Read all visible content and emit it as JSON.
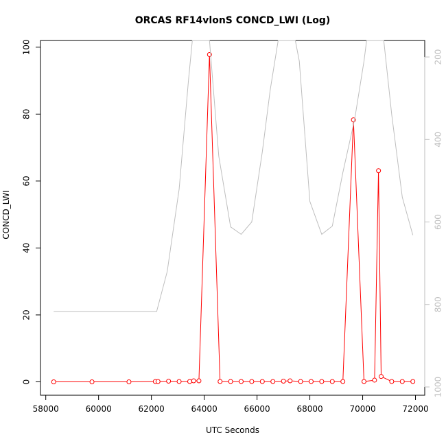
{
  "chart_data": {
    "type": "line",
    "title": "ORCAS RF14vlonS CONCD_LWI (Log)",
    "xlabel": "UTC Seconds",
    "ylabel": "CONCD_LWI",
    "xlim": [
      57800,
      72350
    ],
    "ylim": [
      -4,
      102
    ],
    "x_ticks": [
      58000,
      60000,
      62000,
      64000,
      66000,
      68000,
      70000,
      72000
    ],
    "x_tick_labels": [
      "58000",
      "60000",
      "62000",
      "64000",
      "66000",
      "68000",
      "70000",
      "72000"
    ],
    "y_ticks": [
      0,
      20,
      40,
      60,
      80,
      100
    ],
    "y_tick_labels": [
      "0",
      "20",
      "40",
      "60",
      "80",
      "100"
    ],
    "y2_ticks": [
      200,
      400,
      600,
      800,
      1000
    ],
    "y2_tick_labels": [
      "200",
      "400",
      "600",
      "800",
      "1000"
    ],
    "y2lim": [
      1020,
      160
    ],
    "series": [
      {
        "role": "primary",
        "color": "#ff0000",
        "marker": "open-circle",
        "points": [
          [
            58300,
            0
          ],
          [
            59750,
            0
          ],
          [
            61150,
            0
          ],
          [
            62150,
            0.1
          ],
          [
            62250,
            0.1
          ],
          [
            62650,
            0.2
          ],
          [
            63050,
            0.1
          ],
          [
            63450,
            0.1
          ],
          [
            63600,
            0.3
          ],
          [
            63800,
            0.3
          ],
          [
            64200,
            97.8
          ],
          [
            64600,
            0.1
          ],
          [
            65000,
            0.1
          ],
          [
            65400,
            0.1
          ],
          [
            65800,
            0.1
          ],
          [
            66200,
            0.1
          ],
          [
            66600,
            0.1
          ],
          [
            67000,
            0.2
          ],
          [
            67250,
            0.3
          ],
          [
            67650,
            0.1
          ],
          [
            68050,
            0.1
          ],
          [
            68450,
            0.1
          ],
          [
            68850,
            0.1
          ],
          [
            69250,
            0.1
          ],
          [
            69650,
            78.3
          ],
          [
            70050,
            0.1
          ],
          [
            70450,
            0.5
          ],
          [
            70600,
            63.1
          ],
          [
            70700,
            1.6
          ],
          [
            71100,
            0.1
          ],
          [
            71500,
            0.1
          ],
          [
            71900,
            0.1
          ]
        ]
      },
      {
        "role": "secondary",
        "color": "#bebebe",
        "points": [
          [
            58300,
            817
          ],
          [
            62200,
            817
          ],
          [
            62600,
            720
          ],
          [
            63050,
            520
          ],
          [
            63400,
            260
          ],
          [
            63550,
            160
          ],
          [
            64200,
            160
          ],
          [
            64550,
            440
          ],
          [
            65000,
            612
          ],
          [
            65400,
            630
          ],
          [
            65800,
            600
          ],
          [
            66200,
            430
          ],
          [
            66500,
            280
          ],
          [
            66800,
            160
          ],
          [
            67450,
            160
          ],
          [
            67600,
            210
          ],
          [
            68000,
            550
          ],
          [
            68450,
            630
          ],
          [
            68850,
            610
          ],
          [
            69250,
            480
          ],
          [
            69700,
            350
          ],
          [
            70050,
            210
          ],
          [
            70150,
            160
          ],
          [
            70800,
            160
          ],
          [
            71100,
            340
          ],
          [
            71500,
            540
          ],
          [
            71900,
            632
          ]
        ]
      }
    ]
  }
}
